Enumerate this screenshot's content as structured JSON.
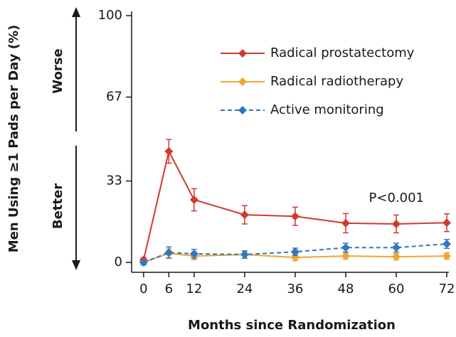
{
  "chart_data": {
    "type": "line",
    "y_label": "Men Using ≥1 Pads per Day (%)",
    "x_label": "Months since Randomization",
    "annotations": {
      "worse": "Worse",
      "better": "Better",
      "p_value": "P<0.001"
    },
    "x": [
      0,
      6,
      12,
      24,
      36,
      48,
      60,
      72
    ],
    "series": [
      {
        "name": "Radical prostatectomy",
        "color": "#cf3a2e",
        "dashed": false,
        "values": [
          1,
          45,
          25.4,
          19.3,
          18.7,
          15.9,
          15.6,
          16.1
        ],
        "errors": [
          1,
          4.8,
          4.5,
          3.7,
          3.7,
          3.9,
          3.6,
          3.6
        ]
      },
      {
        "name": "Radical radiotherapy",
        "color": "#f0a530",
        "dashed": false,
        "values": [
          0,
          3.7,
          2.6,
          3.2,
          2,
          2.6,
          2.3,
          2.6
        ],
        "errors": [
          1,
          1.8,
          1.5,
          1.3,
          1.3,
          1.3,
          1.3,
          1.3
        ]
      },
      {
        "name": "Active monitoring",
        "color": "#2f78c0",
        "dashed": true,
        "values": [
          0,
          4,
          3.5,
          3.2,
          4.3,
          6,
          6,
          7.5
        ],
        "errors": [
          1,
          2.3,
          1.8,
          1.5,
          1.5,
          1.8,
          1.8,
          1.8
        ]
      }
    ],
    "xlim": [
      -2,
      72.5
    ],
    "ylim": [
      -4,
      100
    ],
    "xticks": [
      0,
      6,
      12,
      24,
      36,
      48,
      60,
      72
    ],
    "yticks": [
      0,
      33,
      67,
      100
    ]
  }
}
